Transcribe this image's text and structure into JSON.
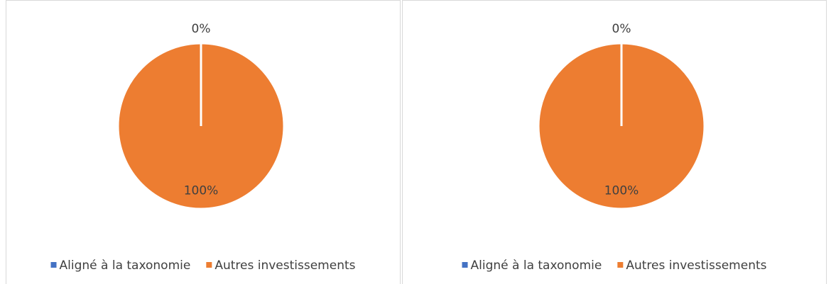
{
  "chart_data": [
    {
      "type": "pie",
      "categories": [
        "Aligné à la taxonomie",
        "Autres investissements"
      ],
      "values": [
        0,
        100
      ],
      "value_labels": [
        "0%",
        "100%"
      ],
      "colors": [
        "#4472c4",
        "#ed7d31"
      ],
      "legend": "bottom"
    },
    {
      "type": "pie",
      "categories": [
        "Aligné à la taxonomie",
        "Autres investissements"
      ],
      "values": [
        0,
        100
      ],
      "value_labels": [
        "0%",
        "100%"
      ],
      "colors": [
        "#4472c4",
        "#ed7d31"
      ],
      "legend": "bottom"
    }
  ]
}
